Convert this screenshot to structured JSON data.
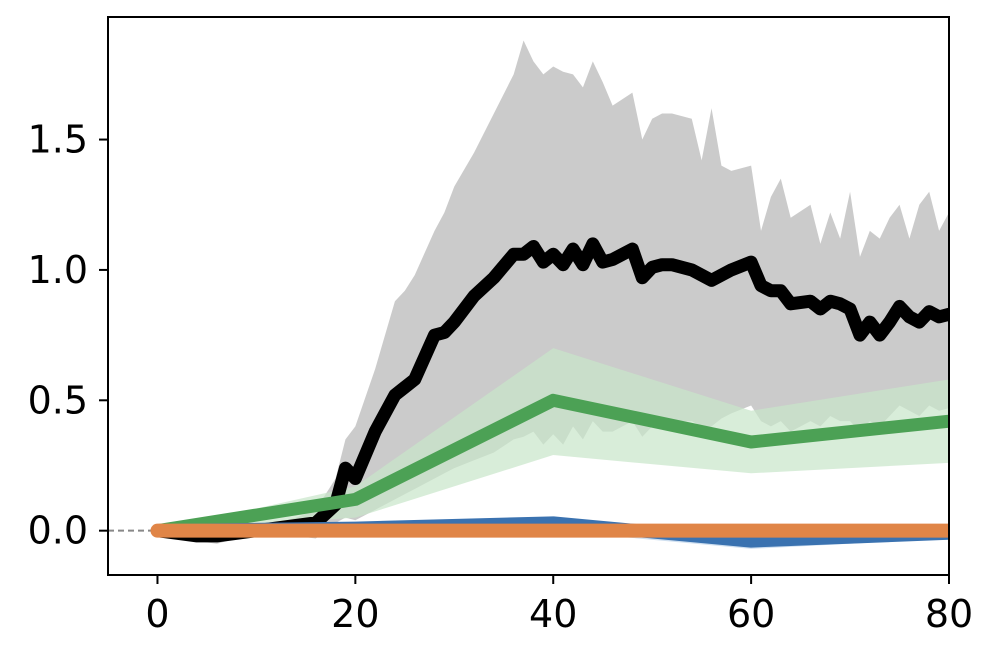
{
  "chart_data": {
    "type": "line",
    "title": "",
    "xlabel": "",
    "ylabel": "",
    "xlim": [
      -5,
      80
    ],
    "ylim": [
      -0.17,
      1.97
    ],
    "xticks": [
      0,
      20,
      40,
      60,
      80
    ],
    "yticks": [
      0.0,
      0.5,
      1.0,
      1.5
    ],
    "xtick_labels": [
      "0",
      "20",
      "40",
      "60",
      "80"
    ],
    "ytick_labels": [
      "0.0",
      "0.5",
      "1.0",
      "1.5"
    ],
    "grid": false,
    "legend": "none",
    "reference_line": {
      "y": 0.0,
      "style": "dashed",
      "color": "#888888"
    },
    "series": [
      {
        "color": "#000000",
        "band_color": "#c8c8c8",
        "x": [
          0,
          2,
          4,
          6,
          8,
          10,
          12,
          14,
          16,
          18,
          19,
          20,
          22,
          24,
          25,
          26,
          28,
          29,
          30,
          32,
          34,
          36,
          37,
          38,
          39,
          40,
          41,
          42,
          43,
          44,
          45,
          46,
          48,
          49,
          50,
          51,
          52,
          54,
          55,
          56,
          57,
          58,
          60,
          61,
          62,
          63,
          64,
          66,
          67,
          68,
          69,
          70,
          71,
          72,
          73,
          74,
          75,
          76,
          77,
          78,
          79,
          80
        ],
        "values": [
          0.0,
          -0.01,
          -0.02,
          -0.02,
          -0.01,
          0.0,
          0.01,
          0.02,
          0.03,
          0.1,
          0.24,
          0.2,
          0.38,
          0.52,
          0.55,
          0.58,
          0.75,
          0.76,
          0.8,
          0.9,
          0.97,
          1.06,
          1.06,
          1.09,
          1.03,
          1.06,
          1.02,
          1.08,
          1.02,
          1.1,
          1.03,
          1.04,
          1.08,
          0.97,
          1.01,
          1.02,
          1.02,
          1.0,
          0.98,
          0.96,
          0.98,
          1.0,
          1.03,
          0.94,
          0.92,
          0.92,
          0.87,
          0.88,
          0.85,
          0.88,
          0.87,
          0.85,
          0.75,
          0.8,
          0.75,
          0.8,
          0.86,
          0.82,
          0.8,
          0.84,
          0.82,
          0.83
        ],
        "lower": [
          0.0,
          -0.02,
          -0.04,
          -0.05,
          -0.03,
          -0.02,
          -0.01,
          -0.02,
          -0.03,
          0.03,
          0.05,
          0.04,
          0.08,
          0.12,
          0.14,
          0.16,
          0.2,
          0.22,
          0.24,
          0.27,
          0.3,
          0.35,
          0.36,
          0.38,
          0.33,
          0.37,
          0.33,
          0.4,
          0.35,
          0.42,
          0.38,
          0.38,
          0.42,
          0.36,
          0.4,
          0.42,
          0.42,
          0.42,
          0.4,
          0.4,
          0.43,
          0.45,
          0.48,
          0.42,
          0.4,
          0.42,
          0.38,
          0.42,
          0.4,
          0.44,
          0.42,
          0.42,
          0.38,
          0.42,
          0.4,
          0.44,
          0.48,
          0.46,
          0.44,
          0.48,
          0.46,
          0.47
        ],
        "upper": [
          0.0,
          0.0,
          0.0,
          0.01,
          0.01,
          0.02,
          0.03,
          0.05,
          0.08,
          0.2,
          0.35,
          0.4,
          0.62,
          0.88,
          0.92,
          0.98,
          1.15,
          1.22,
          1.32,
          1.45,
          1.6,
          1.75,
          1.88,
          1.8,
          1.75,
          1.78,
          1.76,
          1.75,
          1.7,
          1.8,
          1.72,
          1.63,
          1.68,
          1.5,
          1.58,
          1.6,
          1.6,
          1.58,
          1.42,
          1.62,
          1.4,
          1.38,
          1.4,
          1.15,
          1.28,
          1.35,
          1.2,
          1.25,
          1.1,
          1.22,
          1.12,
          1.3,
          1.05,
          1.15,
          1.12,
          1.2,
          1.25,
          1.12,
          1.25,
          1.3,
          1.15,
          1.22
        ]
      },
      {
        "color": "#4ca155",
        "band_color": "#c8e6c9",
        "x": [
          0,
          20,
          40,
          60,
          80
        ],
        "values": [
          0.0,
          0.12,
          0.5,
          0.34,
          0.42
        ],
        "lower": [
          0.0,
          0.05,
          0.29,
          0.22,
          0.26
        ],
        "upper": [
          0.0,
          0.17,
          0.7,
          0.46,
          0.58
        ]
      },
      {
        "color": "#3a72b0",
        "band_color": "#bcd3ea",
        "x": [
          0,
          20,
          40,
          60,
          80
        ],
        "values": [
          0.0,
          0.01,
          0.03,
          -0.04,
          -0.01
        ],
        "lower": [
          0.0,
          -0.01,
          0.0,
          -0.07,
          -0.03
        ],
        "upper": [
          0.0,
          0.02,
          0.05,
          -0.01,
          0.01
        ]
      },
      {
        "color": "#e08547",
        "band_color": "#f5d3b8",
        "x": [
          0,
          20,
          40,
          60,
          80
        ],
        "values": [
          0.0,
          0.0,
          0.0,
          0.0,
          0.0
        ],
        "lower": [
          0.0,
          -0.01,
          -0.01,
          -0.01,
          -0.01
        ],
        "upper": [
          0.0,
          0.01,
          0.01,
          0.01,
          0.01
        ]
      }
    ]
  }
}
